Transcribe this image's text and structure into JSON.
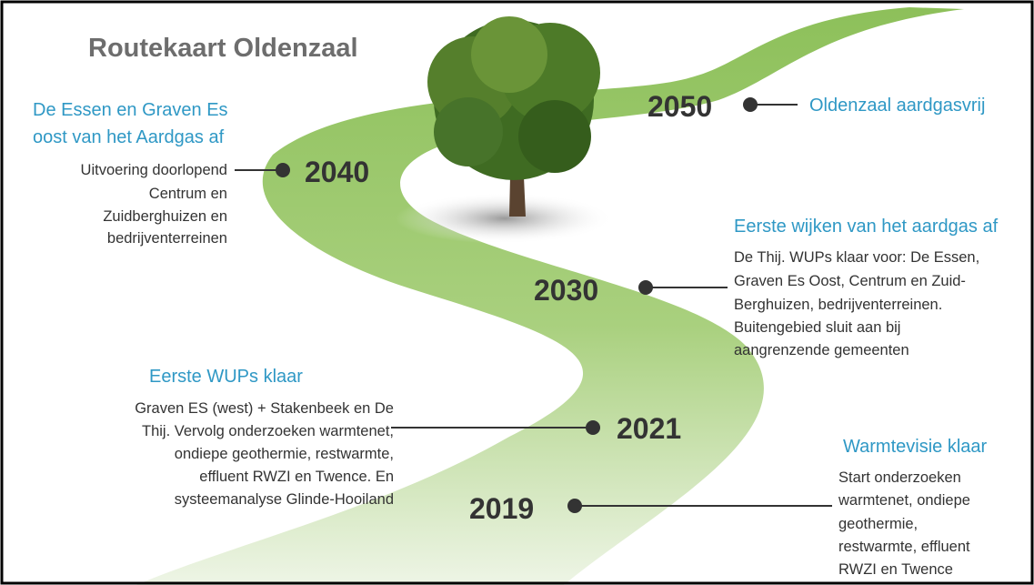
{
  "title": "Routekaart Oldenzaal",
  "milestones": [
    {
      "year": "2050",
      "heading": [
        "Oldenzaal aardgasvrij"
      ],
      "body": []
    },
    {
      "year": "2040",
      "heading": [
        "De Essen en Graven Es",
        "oost van het Aardgas af"
      ],
      "body": [
        "Uitvoering doorlopend",
        "Centrum en",
        "Zuidberghuizen en",
        "bedrijventerreinen"
      ]
    },
    {
      "year": "2030",
      "heading": [
        "Eerste wijken van het aardgas af"
      ],
      "body": [
        "De Thij. WUPs klaar voor: De Essen,",
        "Graven Es Oost, Centrum en Zuid-",
        "Berghuizen, bedrijventerreinen.",
        "Buitengebied sluit aan bij",
        "aangrenzende gemeenten"
      ]
    },
    {
      "year": "2021",
      "heading": [
        "Eerste WUPs klaar"
      ],
      "body": [
        "Graven ES (west) + Stakenbeek en De",
        "Thij. Vervolg onderzoeken warmtenet,",
        "ondiepe geothermie, restwarmte,",
        "effluent RWZI en Twence. En",
        "systeemanalyse Glinde-Hooiland"
      ]
    },
    {
      "year": "2019",
      "heading": [
        "Warmtevisie klaar"
      ],
      "body": [
        "Start onderzoeken",
        "warmtenet, ondiepe",
        "geothermie,",
        "restwarmte, effluent",
        "RWZI en Twence"
      ]
    }
  ]
}
